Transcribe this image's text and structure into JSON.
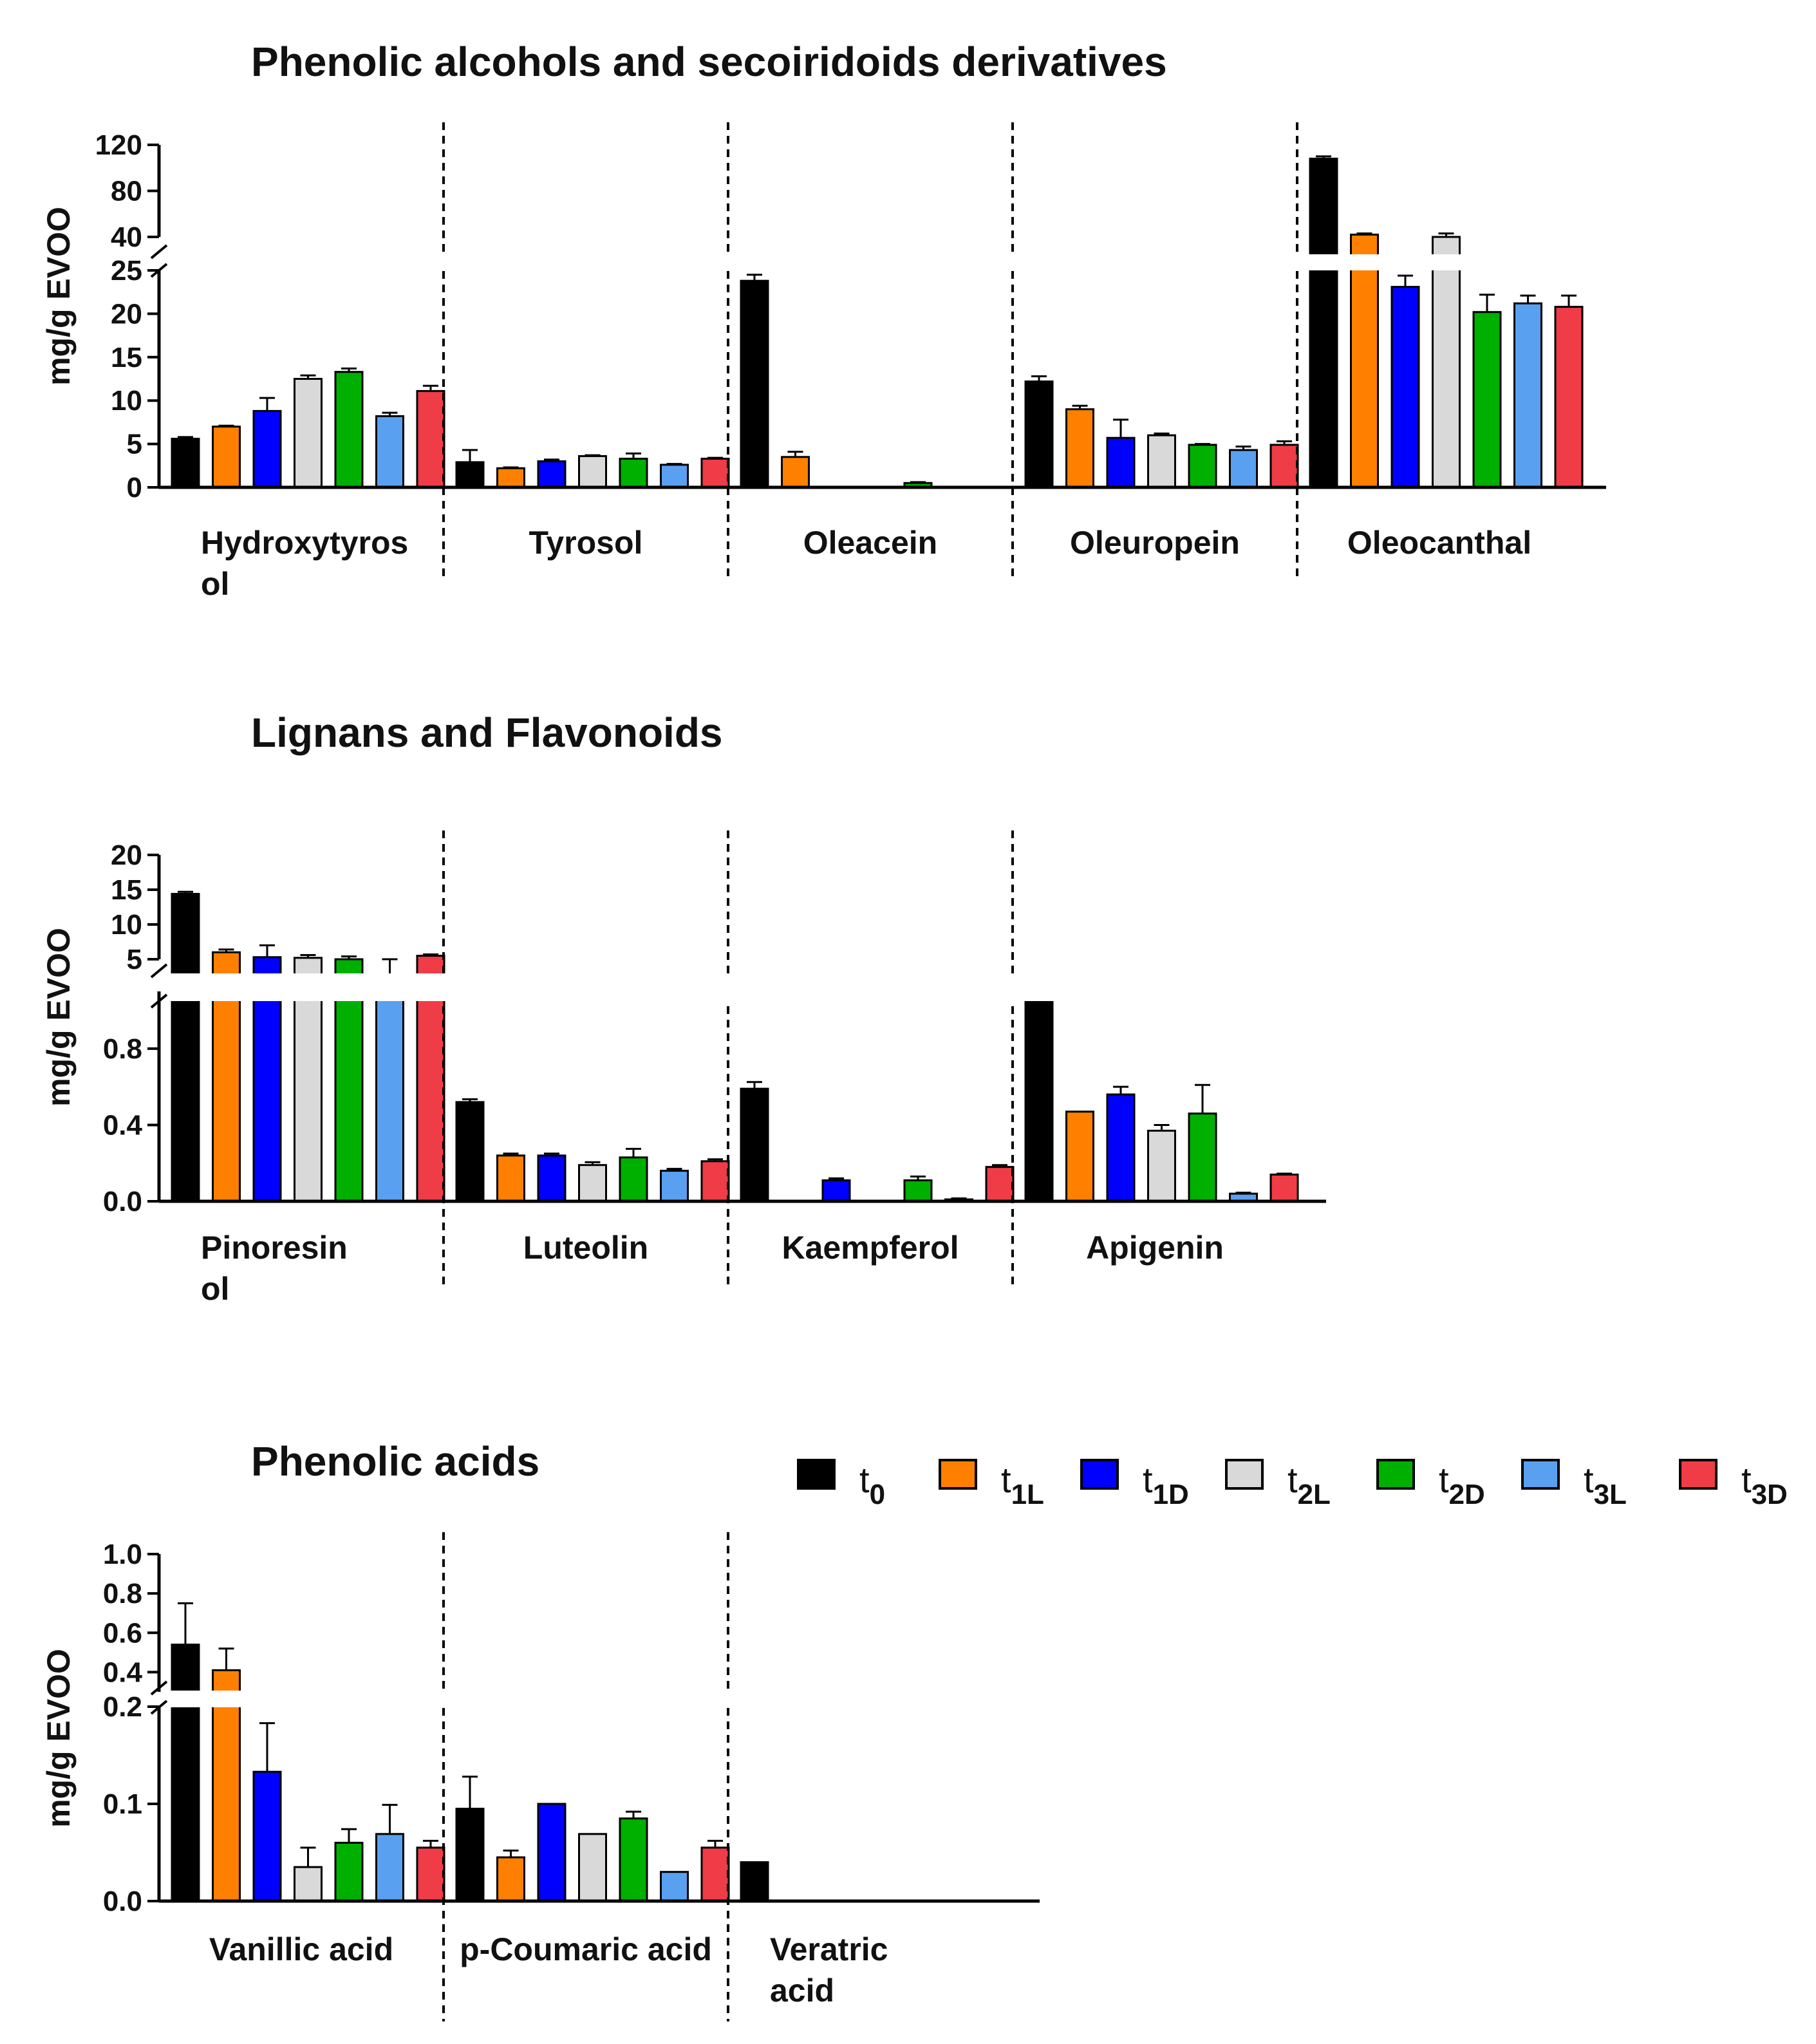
{
  "legend": [
    {
      "base": "t",
      "sub": "0",
      "color": "#000000"
    },
    {
      "base": "t",
      "sub": "1L",
      "color": "#ff8000"
    },
    {
      "base": "t",
      "sub": "1D",
      "color": "#0000ff"
    },
    {
      "base": "t",
      "sub": "2L",
      "color": "#d9d9d9"
    },
    {
      "base": "t",
      "sub": "2D",
      "color": "#00b000"
    },
    {
      "base": "t",
      "sub": "3L",
      "color": "#5aa0f0"
    },
    {
      "base": "t",
      "sub": "3D",
      "color": "#f03c46"
    }
  ],
  "chart_data": [
    {
      "type": "bar",
      "title": "Phenolic alcohols and secoiridoids derivatives",
      "ylabel": "mg/g EVOO",
      "xlabel": "",
      "y_axis_break": {
        "lower_range": [
          0,
          25
        ],
        "upper_range": [
          40,
          120
        ]
      },
      "lower_ticks": [
        "0",
        "5",
        "10",
        "15",
        "20",
        "25"
      ],
      "upper_ticks": [
        "40",
        "80",
        "120"
      ],
      "series_names": [
        "t0",
        "t1L",
        "t1D",
        "t2L",
        "t2D",
        "t3L",
        "t3D"
      ],
      "groups": [
        {
          "label": [
            "Hydroxytyros",
            "ol"
          ],
          "values": [
            5.6,
            7.0,
            8.8,
            12.5,
            13.3,
            8.2,
            11.1
          ],
          "errors": [
            0.2,
            0.1,
            1.5,
            0.4,
            0.4,
            0.4,
            0.6
          ]
        },
        {
          "label": [
            "Tyrosol"
          ],
          "values": [
            2.9,
            2.2,
            3.0,
            3.6,
            3.3,
            2.6,
            3.3
          ],
          "errors": [
            1.4,
            0.1,
            0.2,
            0.1,
            0.6,
            0.1,
            0.1
          ]
        },
        {
          "label": [
            "Oleacein"
          ],
          "values": [
            23.8,
            3.5,
            0,
            0,
            0.5,
            0,
            0
          ],
          "errors": [
            0.7,
            0.6,
            0,
            0,
            0.1,
            0,
            0
          ]
        },
        {
          "label": [
            "Oleuropein"
          ],
          "values": [
            12.2,
            9.0,
            5.7,
            6.0,
            4.9,
            4.3,
            4.9
          ],
          "errors": [
            0.6,
            0.4,
            2.1,
            0.2,
            0.1,
            0.4,
            0.4
          ]
        },
        {
          "label": [
            "Oleocanthal"
          ],
          "values": [
            108,
            42,
            23.1,
            40,
            20.2,
            21.2,
            20.8
          ],
          "errors": [
            2,
            1,
            1.3,
            3,
            2.0,
            0.9,
            1.3
          ]
        }
      ]
    },
    {
      "type": "bar",
      "title": "Lignans and Flavonoids",
      "ylabel": "mg/g EVOO",
      "xlabel": "",
      "y_axis_break": {
        "lower_range": [
          0,
          1.1
        ],
        "upper_range": [
          5,
          20
        ]
      },
      "lower_ticks": [
        "0.0",
        "0.4",
        "0.8"
      ],
      "upper_ticks": [
        "5",
        "10",
        "15",
        "20"
      ],
      "series_names": [
        "t0",
        "t1L",
        "t1D",
        "t2L",
        "t2D",
        "t3L",
        "t3D"
      ],
      "groups": [
        {
          "label": [
            "Pinoresin",
            "ol"
          ],
          "values": [
            14.4,
            6.0,
            5.3,
            5.2,
            5.0,
            4.8,
            5.5
          ],
          "errors": [
            0.3,
            0.4,
            1.7,
            0.4,
            0.4,
            0.2,
            0.2
          ]
        },
        {
          "label": [
            "Luteolin"
          ],
          "values": [
            0.52,
            0.24,
            0.24,
            0.19,
            0.23,
            0.16,
            0.21
          ],
          "errors": [
            0.015,
            0.01,
            0.01,
            0.015,
            0.045,
            0.01,
            0.01
          ]
        },
        {
          "label": [
            "Kaempferol"
          ],
          "values": [
            0.59,
            0,
            0.11,
            0,
            0.11,
            0.01,
            0.18
          ],
          "errors": [
            0.035,
            0,
            0.01,
            0,
            0.02,
            0.005,
            0.01
          ]
        },
        {
          "label": [
            "Apigenin"
          ],
          "values": [
            1.05,
            0.47,
            0.56,
            0.37,
            0.46,
            0.04,
            0.14
          ],
          "errors": [
            0.05,
            0,
            0.04,
            0.03,
            0.15,
            0.005,
            0.005
          ]
        }
      ]
    },
    {
      "type": "bar",
      "title": "Phenolic acids",
      "ylabel": "mg/g EVOO",
      "xlabel": "",
      "y_axis_break": {
        "lower_range": [
          0,
          0.2
        ],
        "upper_range": [
          0.3,
          1.0
        ]
      },
      "lower_ticks": [
        "0.0",
        "0.1",
        "0.2"
      ],
      "upper_ticks": [
        "0.4",
        "0.6",
        "0.8",
        "1.0"
      ],
      "series_names": [
        "t0",
        "t1L",
        "t1D",
        "t2L",
        "t2D",
        "t3L",
        "t3D"
      ],
      "groups": [
        {
          "label": [
            "Vanillic acid"
          ],
          "values": [
            0.54,
            0.41,
            0.133,
            0.035,
            0.06,
            0.069,
            0.055
          ],
          "errors": [
            0.21,
            0.11,
            0.05,
            0.02,
            0.014,
            0.03,
            0.007
          ]
        },
        {
          "label": [
            "p-Coumaric acid"
          ],
          "values": [
            0.095,
            0.045,
            0.1,
            0.069,
            0.085,
            0.03,
            0.055
          ],
          "errors": [
            0.033,
            0.007,
            0,
            0,
            0.007,
            0,
            0.007
          ]
        },
        {
          "label": [
            "Veratric",
            "acid"
          ],
          "values": [
            0.04,
            0,
            0,
            0,
            0,
            0,
            0
          ],
          "errors": [
            0,
            0,
            0,
            0,
            0,
            0,
            0
          ]
        }
      ]
    }
  ]
}
